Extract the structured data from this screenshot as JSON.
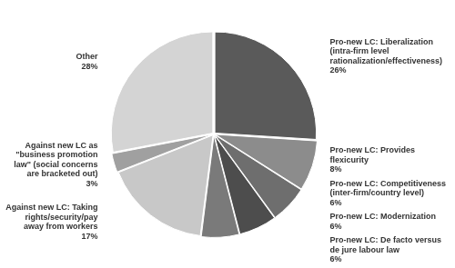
{
  "chart_data": {
    "type": "pie",
    "categories": [
      "Pro-new LC: Liberalization (intra-firm level rationalization/effectiveness)",
      "Pro-new LC: Provides flexicurity",
      "Pro-new LC: Competitiveness (inter-firm/country level)",
      "Pro-new LC: Modernization",
      "Pro-new LC: De facto versus de jure labour law",
      "Against new LC: Taking rights/security/pay away from workers",
      "Against new LC as \"business promotion law\" (social concerns are bracketed out)",
      "Other"
    ],
    "values": [
      26,
      8,
      6,
      6,
      6,
      17,
      3,
      28
    ],
    "value_labels": [
      "26%",
      "8%",
      "6%",
      "6%",
      "6%",
      "17%",
      "3%",
      "28%"
    ],
    "colors": [
      "#5a5a5a",
      "#8c8c8c",
      "#6e6e6e",
      "#4d4d4d",
      "#7a7a7a",
      "#c8c8c8",
      "#a0a0a0",
      "#d4d4d4"
    ],
    "data_labels": true
  }
}
